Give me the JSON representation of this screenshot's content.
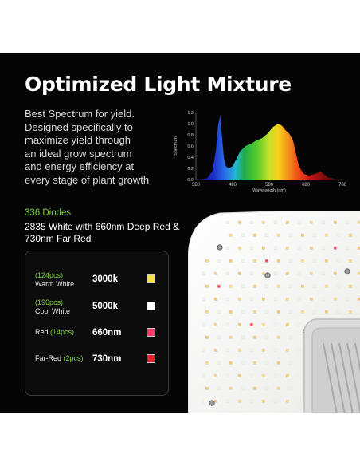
{
  "title": "Optimized Light Mixture",
  "description": [
    "Best Spectrum for yield.",
    "Designed specifically to",
    "maximize yield through",
    "an ideal grow spectrum",
    "and energy efficiency at",
    "every stage of plant growth"
  ],
  "diodes_label": "336 Diodes",
  "spec_lines": [
    "2835 White with 660nm Deep Red &",
    "730nm Far Red"
  ],
  "chart_data": {
    "type": "area",
    "title": "",
    "xlabel": "Wavelength (nm)",
    "ylabel": "Spectrum",
    "xlim": [
      380,
      780
    ],
    "ylim": [
      0.0,
      1.2
    ],
    "x_ticks": [
      "380",
      "480",
      "580",
      "680",
      "780"
    ],
    "y_ticks": [
      "0.0",
      "0.2",
      "0.4",
      "0.6",
      "0.8",
      "1.0",
      "1.2"
    ],
    "x": [
      380,
      410,
      425,
      435,
      440,
      446,
      450,
      456,
      462,
      470,
      480,
      490,
      500,
      515,
      530,
      545,
      560,
      575,
      590,
      605,
      615,
      625,
      635,
      645,
      652,
      658,
      662,
      668,
      675,
      690,
      705,
      720,
      730,
      740,
      760,
      780
    ],
    "values": [
      0.0,
      0.02,
      0.15,
      0.55,
      0.95,
      1.15,
      0.85,
      0.4,
      0.24,
      0.2,
      0.24,
      0.36,
      0.5,
      0.6,
      0.64,
      0.7,
      0.74,
      0.82,
      0.94,
      1.0,
      0.96,
      0.88,
      0.82,
      0.7,
      0.5,
      0.32,
      0.24,
      0.16,
      0.1,
      0.07,
      0.1,
      0.14,
      0.1,
      0.04,
      0.01,
      0.0
    ],
    "grid": false,
    "legend": "none"
  },
  "led_table": [
    {
      "count": "(124pcs)",
      "name": "Warm White",
      "value": "3000k",
      "color": "#f2e04a",
      "layout": "stacked"
    },
    {
      "count": "(196pcs)",
      "name": "Cool White",
      "value": "5000k",
      "color": "#ffffff",
      "layout": "stacked"
    },
    {
      "count": "(14pcs)",
      "name": "Red ",
      "value": "660nm",
      "color": "#ff3b6b",
      "layout": "inline"
    },
    {
      "count": "(2pcs)",
      "name": "Far-Red ",
      "value": "730nm",
      "color": "#e3242b",
      "layout": "inline"
    }
  ],
  "colors": {
    "background": "#050505",
    "accent_green": "#7bd23c",
    "panel": "#f4f4f2"
  }
}
